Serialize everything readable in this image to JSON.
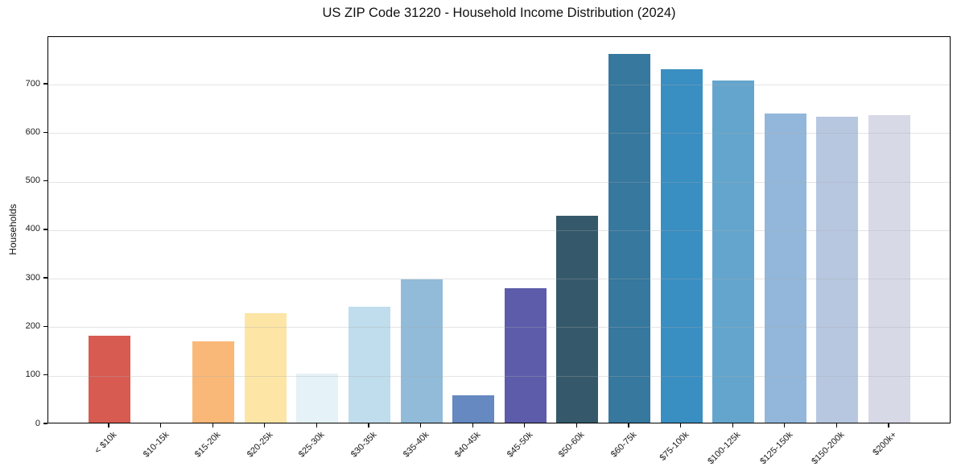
{
  "figure": {
    "title": "US ZIP Code 31220 - Household Income Distribution (2024)",
    "ylabel": "Households"
  },
  "chart_data": {
    "type": "bar",
    "title": "US ZIP Code 31220 - Household Income Distribution (2024)",
    "xlabel": "",
    "ylabel": "Households",
    "categories": [
      "< $10k",
      "$10-15k",
      "$15-20k",
      "$20-25k",
      "$25-30k",
      "$30-35k",
      "$35-40k",
      "$40-45k",
      "$45-50k",
      "$50-60k",
      "$60-75k",
      "$75-100k",
      "$100-125k",
      "$125-150k",
      "$150-200k",
      "$200k+"
    ],
    "values": [
      180,
      0,
      168,
      225,
      102,
      239,
      296,
      57,
      277,
      426,
      760,
      729,
      705,
      637,
      630,
      634
    ],
    "bar_colors": [
      "#d85b51",
      "#f0935e",
      "#f9b877",
      "#fde5a6",
      "#e5f2f7",
      "#bfddec",
      "#91bbd9",
      "#6589c0",
      "#5c5caa",
      "#35596b",
      "#36789e",
      "#398ec2",
      "#64a5cd",
      "#92b7da",
      "#b7c7e0",
      "#d8d9e7"
    ],
    "yticks": [
      0,
      100,
      200,
      300,
      400,
      500,
      600,
      700
    ],
    "ylim": [
      0,
      798
    ],
    "grid": "horizontal",
    "legend": "none",
    "xticklabel_rotation": 45,
    "background_color": "#ffffff",
    "frame_color": "#000000",
    "gridline_color": "#e6e6e6",
    "tick_label_color": "#1a1a1a"
  }
}
